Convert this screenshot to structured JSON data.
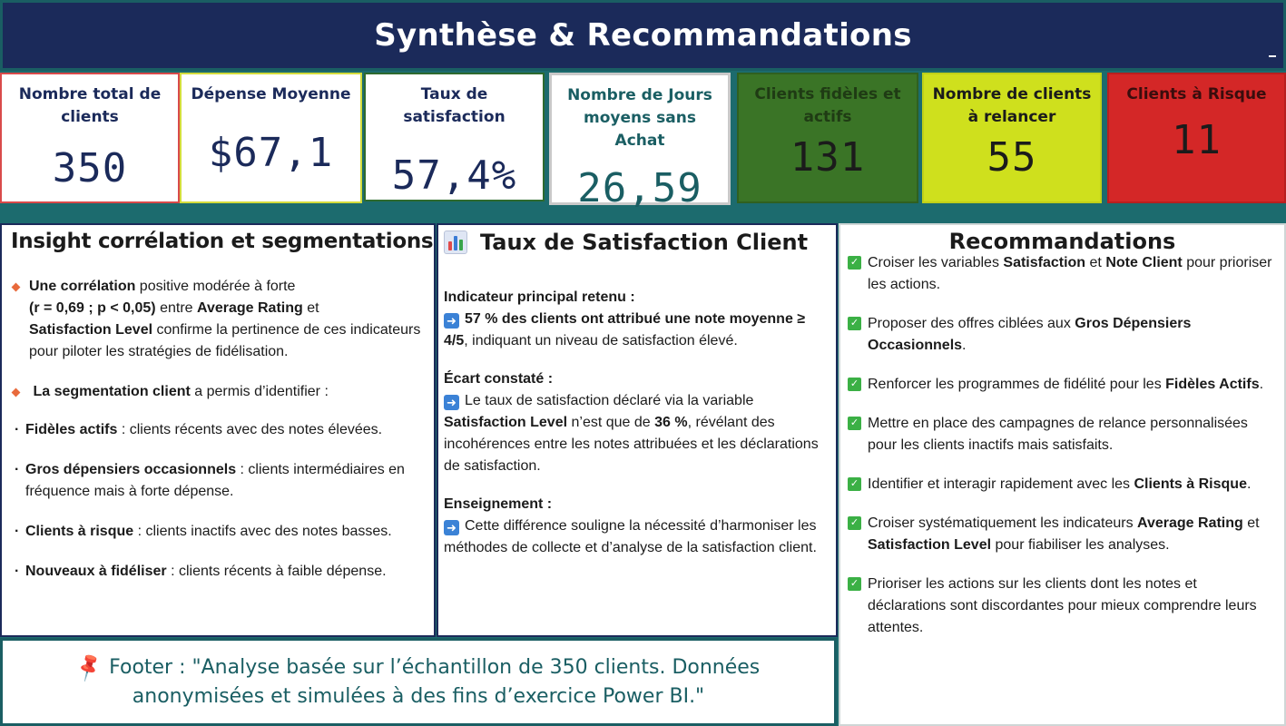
{
  "header": {
    "title": "Synthèse & Recommandations"
  },
  "kpis": [
    {
      "label": "Nombre total de clients",
      "value": "350"
    },
    {
      "label": "Dépense Moyenne",
      "value": "$67,1"
    },
    {
      "label": "Taux de satisfaction",
      "value": "57,4%"
    },
    {
      "label": "Nombre de Jours moyens sans Achat",
      "value": "26,59"
    },
    {
      "label": "Clients fidèles et actifs",
      "value": "131"
    },
    {
      "label": "Nombre de clients à relancer",
      "value": "55"
    },
    {
      "label": "Clients à Risque",
      "value": "11"
    }
  ],
  "insight": {
    "title": "Insight corrélation et segmentations",
    "item1": {
      "b1": "Une corrélation",
      "t1": " positive modérée à forte",
      "b2": "(r = 0,69 ; p < 0,05)",
      "t2": "  entre ",
      "b3": "Average Rating",
      "t3": " et",
      "b4": "Satisfaction Level",
      "t4": " confirme la  pertinence de ces indicateurs pour piloter les stratégies de fidélisation."
    },
    "item2": {
      "b": "La segmentation client",
      "t": " a permis d’identifier :"
    },
    "segments": [
      {
        "name": "Fidèles actifs",
        "desc": " : clients récents avec des notes élevées."
      },
      {
        "name": "Gros dépensiers occasionnels",
        "desc": " : clients intermédiaires en fréquence mais à forte dépense."
      },
      {
        "name": "Clients à risque",
        "desc": " : clients inactifs avec des notes basses."
      },
      {
        "name": "Nouveaux à fidéliser",
        "desc": " : clients récents à faible dépense."
      }
    ]
  },
  "satisfaction": {
    "title": "Taux de Satisfaction Client",
    "block1": {
      "head": "Indicateur principal retenu :",
      "bold": "57 % des clients ont attribué une note moyenne ≥ 4/5",
      "text": ", indiquant un niveau de satisfaction élevé."
    },
    "block2": {
      "head": "Écart constaté :",
      "t1": "Le taux de satisfaction déclaré via la variable ",
      "b1": "Satisfaction Level",
      "t2": " n’est que de ",
      "b2": "36 %",
      "t3": ", révélant des incohérences entre les notes attribuées et les déclarations de satisfaction."
    },
    "block3": {
      "head": "Enseignement :",
      "text": "Cette différence souligne la nécessité d’harmoniser les méthodes de collecte et d’analyse de la satisfaction client."
    }
  },
  "recommendations": {
    "title": "Recommandations",
    "items": [
      {
        "t1": "Croiser les variables ",
        "b1": "Satisfaction",
        "t2": " et ",
        "b2": "Note Client",
        "t3": " pour  prioriser les actions."
      },
      {
        "t1": "Proposer des offres ciblées aux ",
        "b1": "Gros Dépensiers Occasionnels",
        "t2": "."
      },
      {
        "t1": "Renforcer les programmes de fidélité pour les ",
        "b1": "Fidèles Actifs",
        "t2": "."
      },
      {
        "t1": "Mettre en place des campagnes de relance personnalisées pour les clients inactifs mais satisfaits."
      },
      {
        "t1": "Identifier et interagir rapidement avec les ",
        "b1": "Clients à Risque",
        "t2": "."
      },
      {
        "t1": "Croiser systématiquement les indicateurs ",
        "b1": "Average Rating",
        "t2": " et ",
        "b2": "Satisfaction Level",
        "t3": " pour fiabiliser les analyses."
      },
      {
        "t1": "Prioriser les actions sur les clients dont les notes et déclarations sont discordantes pour mieux comprendre leurs attentes."
      }
    ]
  },
  "footer": {
    "text": "Footer : \"Analyse basée sur l’échantillon de 350 clients. Données anonymisées et simulées à des fins d’exercice Power BI.\""
  },
  "colors": {
    "header_bg": "#1b2a5a",
    "page_bg": "#1c6b6e",
    "kpi_green": "#3a7426",
    "kpi_yellow": "#cfe01d",
    "kpi_red": "#d42727"
  }
}
